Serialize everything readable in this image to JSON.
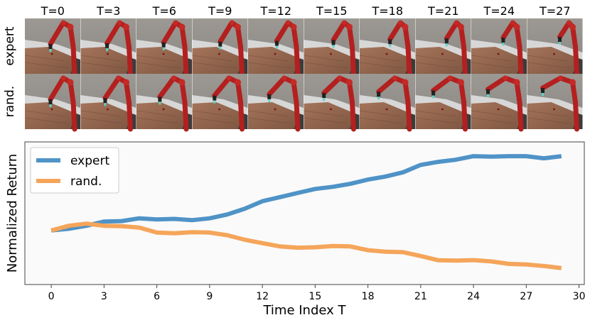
{
  "frame_strip": {
    "time_labels": [
      "T=0",
      "T=3",
      "T=6",
      "T=9",
      "T=12",
      "T=15",
      "T=18",
      "T=21",
      "T=24",
      "T=27"
    ],
    "row_labels": [
      "expert",
      "rand."
    ]
  },
  "chart_data": {
    "type": "line",
    "title": "",
    "xlabel": "Time Index T",
    "ylabel": "Normalized Return",
    "x": [
      0,
      1,
      2,
      3,
      4,
      5,
      6,
      7,
      8,
      9,
      10,
      11,
      12,
      13,
      14,
      15,
      16,
      17,
      18,
      19,
      20,
      21,
      22,
      23,
      24,
      25,
      26,
      27,
      28,
      29
    ],
    "xlim": [
      -1.5,
      30.3
    ],
    "xticks": [
      0,
      3,
      6,
      9,
      12,
      15,
      18,
      21,
      24,
      27,
      30
    ],
    "ylim": [
      0.0,
      1.0
    ],
    "yticks_visible": false,
    "grid": false,
    "legend_position": "top-left",
    "series": [
      {
        "name": "expert",
        "color": "#4f93c7",
        "values": [
          0.379,
          0.391,
          0.412,
          0.442,
          0.445,
          0.464,
          0.456,
          0.46,
          0.451,
          0.464,
          0.491,
          0.532,
          0.584,
          0.613,
          0.642,
          0.67,
          0.685,
          0.706,
          0.736,
          0.757,
          0.787,
          0.839,
          0.86,
          0.875,
          0.9,
          0.897,
          0.9,
          0.9,
          0.885,
          0.9
        ]
      },
      {
        "name": "rand.",
        "color": "#f5a55a",
        "values": [
          0.379,
          0.412,
          0.427,
          0.412,
          0.409,
          0.399,
          0.364,
          0.359,
          0.367,
          0.364,
          0.346,
          0.314,
          0.29,
          0.267,
          0.258,
          0.261,
          0.27,
          0.267,
          0.241,
          0.23,
          0.227,
          0.2,
          0.17,
          0.168,
          0.171,
          0.162,
          0.145,
          0.141,
          0.13,
          0.115
        ]
      }
    ]
  }
}
